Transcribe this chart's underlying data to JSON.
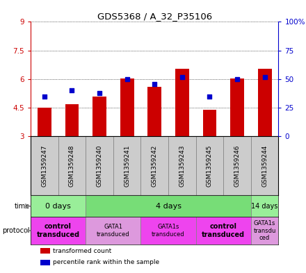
{
  "title": "GDS5368 / A_32_P35106",
  "samples": [
    "GSM1359247",
    "GSM1359248",
    "GSM1359240",
    "GSM1359241",
    "GSM1359242",
    "GSM1359243",
    "GSM1359245",
    "GSM1359246",
    "GSM1359244"
  ],
  "transformed_count": [
    4.5,
    4.7,
    5.1,
    6.05,
    5.6,
    6.55,
    4.4,
    6.05,
    6.55
  ],
  "percentile_rank": [
    35,
    40,
    38,
    50,
    46,
    52,
    35,
    50,
    52
  ],
  "ylim_left": [
    3,
    9
  ],
  "ylim_right": [
    0,
    100
  ],
  "yticks_left": [
    3,
    4.5,
    6,
    7.5,
    9
  ],
  "yticks_right": [
    0,
    25,
    50,
    75,
    100
  ],
  "bar_color": "#cc0000",
  "dot_color": "#0000cc",
  "bar_bottom": 3,
  "time_groups": [
    {
      "label": "0 days",
      "start": 0,
      "end": 2,
      "color": "#99ee99",
      "fontsize": 8,
      "bold": false
    },
    {
      "label": "4 days",
      "start": 2,
      "end": 8,
      "color": "#77dd77",
      "fontsize": 8,
      "bold": false
    },
    {
      "label": "14 days",
      "start": 8,
      "end": 9,
      "color": "#99ee99",
      "fontsize": 7,
      "bold": false
    }
  ],
  "protocol_groups": [
    {
      "label": "control\ntransduced",
      "start": 0,
      "end": 2,
      "color": "#ee44ee",
      "bold": true,
      "fontsize": 7
    },
    {
      "label": "GATA1\ntransduced",
      "start": 2,
      "end": 4,
      "color": "#dd99dd",
      "bold": false,
      "fontsize": 6
    },
    {
      "label": "GATA1s\ntransduced",
      "start": 4,
      "end": 6,
      "color": "#ee44ee",
      "bold": false,
      "fontsize": 6
    },
    {
      "label": "control\ntransduced",
      "start": 6,
      "end": 8,
      "color": "#ee44ee",
      "bold": true,
      "fontsize": 7
    },
    {
      "label": "GATA1s\ntransdu\nced",
      "start": 8,
      "end": 9,
      "color": "#dd99dd",
      "bold": false,
      "fontsize": 6
    }
  ],
  "legend_items": [
    {
      "label": "transformed count",
      "color": "#cc0000"
    },
    {
      "label": "percentile rank within the sample",
      "color": "#0000cc"
    }
  ],
  "left_axis_color": "#cc0000",
  "right_axis_color": "#0000cc",
  "sample_bg_color": "#cccccc"
}
